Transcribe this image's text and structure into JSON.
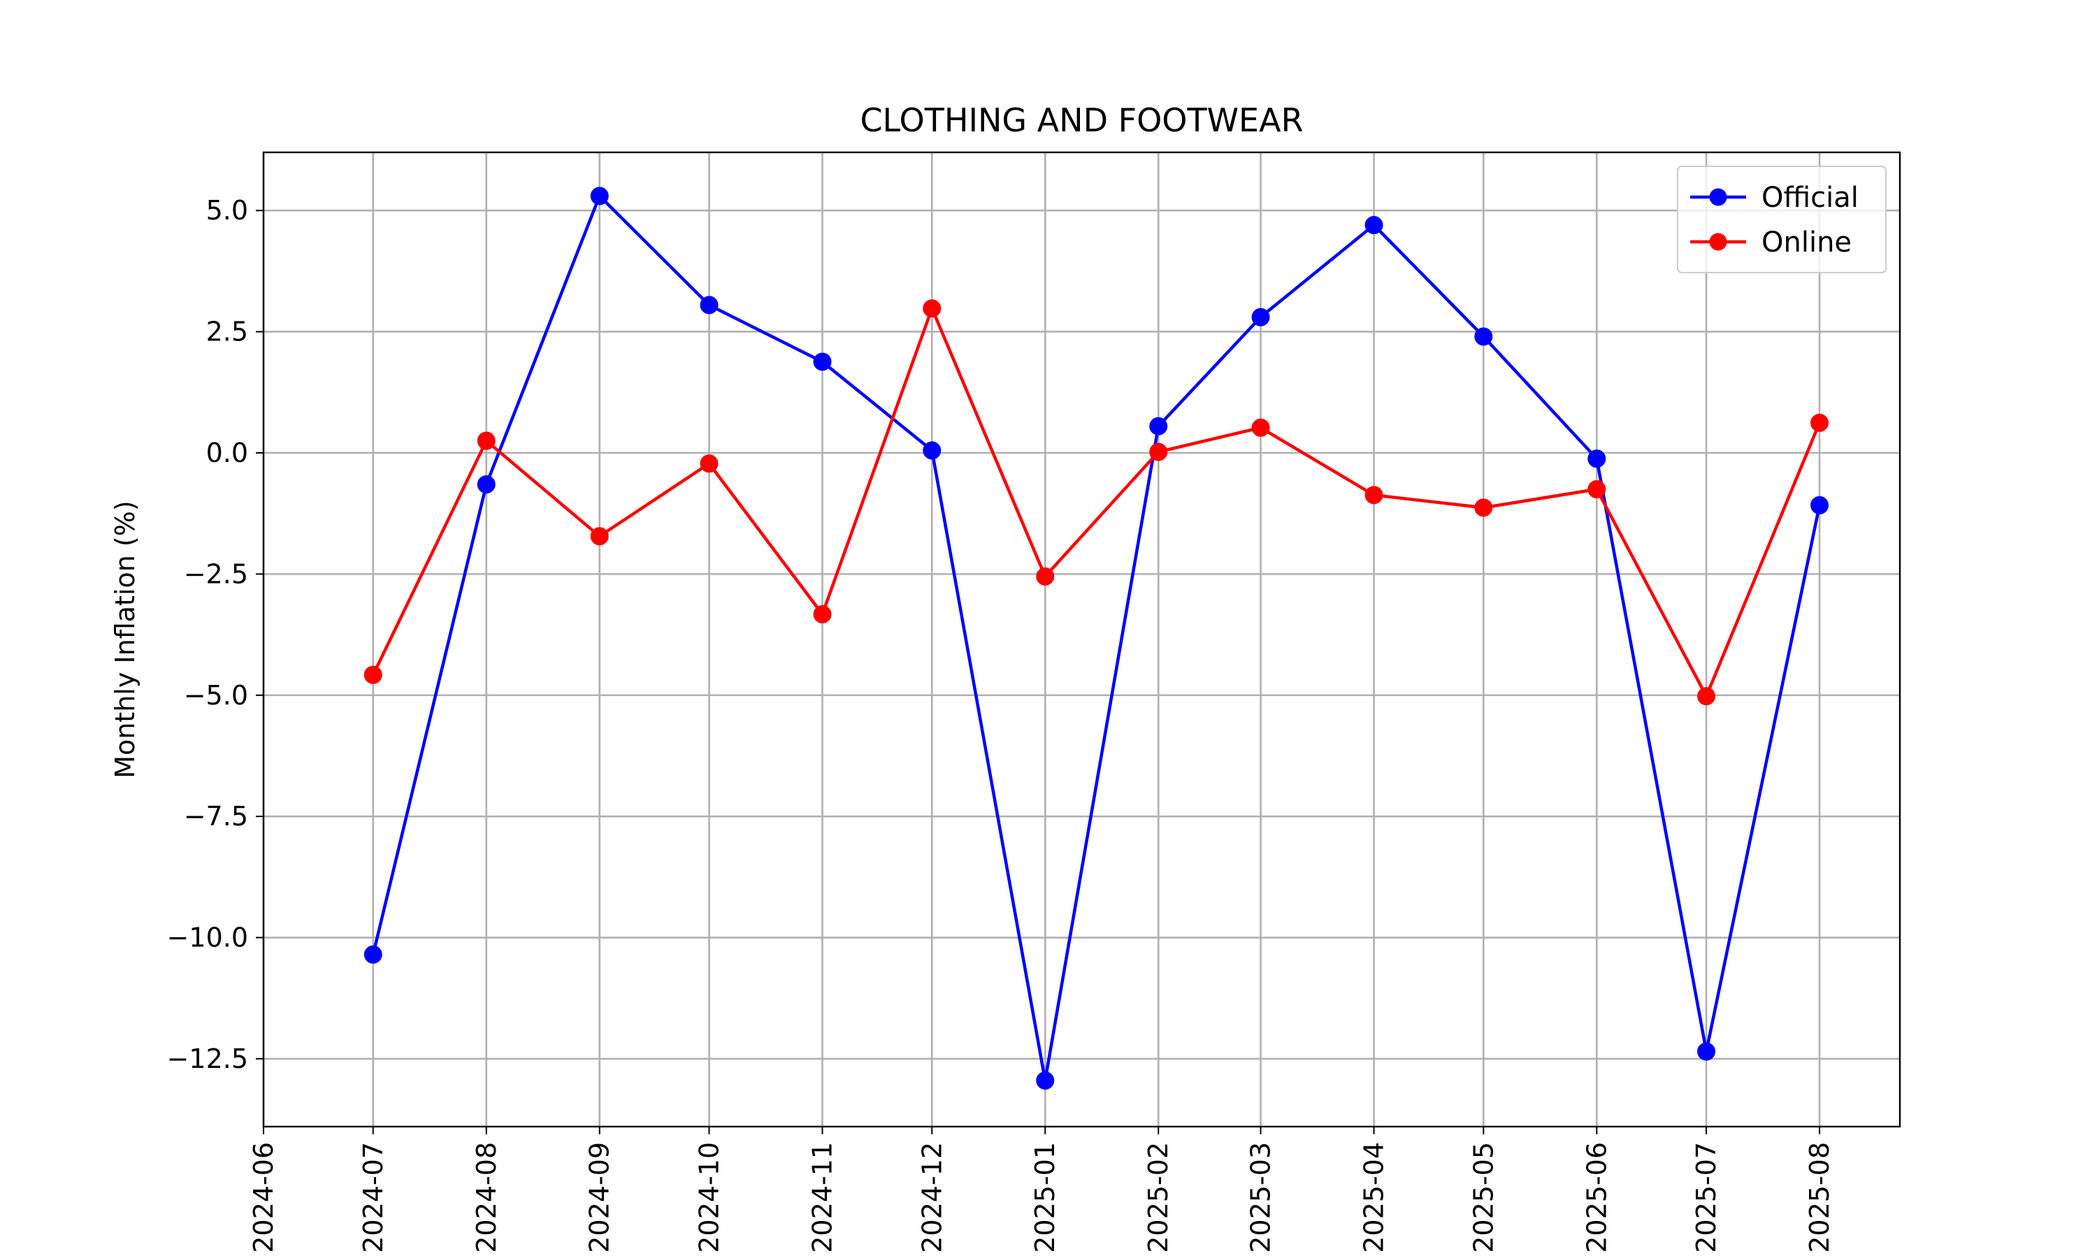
{
  "chart_data": {
    "type": "line",
    "title": "CLOTHING AND FOOTWEAR",
    "xlabel": "",
    "ylabel": "Monthly Inflation (%)",
    "x_ticks": [
      "2024-06",
      "2024-07",
      "2024-08",
      "2024-09",
      "2024-10",
      "2024-11",
      "2024-12",
      "2025-01",
      "2025-02",
      "2025-03",
      "2025-04",
      "2025-05",
      "2025-06",
      "2025-07",
      "2025-08"
    ],
    "y_ticks": [
      5.0,
      2.5,
      0.0,
      -2.5,
      -5.0,
      -7.5,
      -10.0,
      -12.5
    ],
    "y_tick_labels": [
      "5.0",
      "2.5",
      "0.0",
      "−2.5",
      "−5.0",
      "−7.5",
      "−10.0",
      "−12.5"
    ],
    "xlim": [
      "2024-06-01",
      "2025-08-23"
    ],
    "ylim": [
      -13.9,
      6.2
    ],
    "grid": true,
    "legend_position": "upper right",
    "series": [
      {
        "name": "Official",
        "color": "#0000ff",
        "marker": "circle",
        "x": [
          "2024-07-01",
          "2024-08-01",
          "2024-09-01",
          "2024-10-01",
          "2024-11-01",
          "2024-12-01",
          "2025-01-01",
          "2025-02-01",
          "2025-03-01",
          "2025-04-01",
          "2025-05-01",
          "2025-06-01",
          "2025-07-01",
          "2025-08-01"
        ],
        "y": [
          -10.35,
          -0.65,
          5.3,
          3.05,
          1.88,
          0.05,
          -12.95,
          0.55,
          2.8,
          4.7,
          2.4,
          -0.12,
          -12.35,
          -1.08
        ]
      },
      {
        "name": "Online",
        "color": "#ff0000",
        "marker": "circle",
        "x": [
          "2024-07-01",
          "2024-08-01",
          "2024-09-01",
          "2024-10-01",
          "2024-11-01",
          "2024-12-01",
          "2025-01-01",
          "2025-02-01",
          "2025-03-01",
          "2025-04-01",
          "2025-05-01",
          "2025-06-01",
          "2025-07-01",
          "2025-08-01"
        ],
        "y": [
          -4.58,
          0.25,
          -1.72,
          -0.22,
          -3.33,
          2.98,
          -2.55,
          0.02,
          0.52,
          -0.87,
          -1.13,
          -0.75,
          -5.02,
          0.62
        ]
      }
    ]
  }
}
